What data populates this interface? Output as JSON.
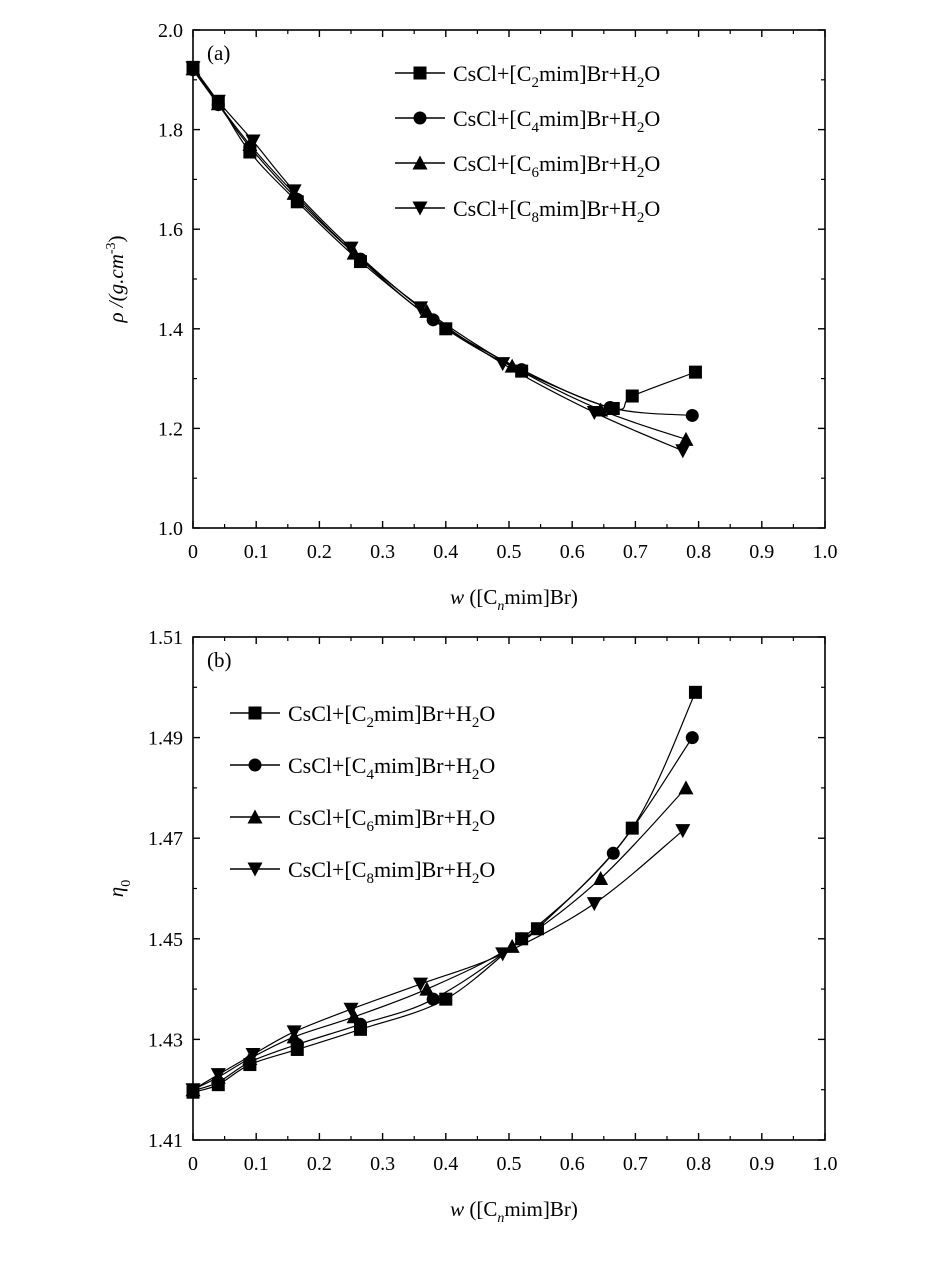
{
  "chart_data": [
    {
      "type": "line",
      "panel_label": "(a)",
      "xlabel_prefix": "w",
      "xlabel_text": "([C",
      "xlabel_sub": "n",
      "xlabel_suffix": "mim]Br)",
      "ylabel_text": "ρ /(g.cm",
      "ylabel_sup": "-3",
      "ylabel_close": ")",
      "xlim": [
        0,
        1.0
      ],
      "ylim": [
        1.0,
        2.0
      ],
      "xticks": [
        "0",
        "0.1",
        "0.2",
        "0.3",
        "0.4",
        "0.5",
        "0.6",
        "0.7",
        "0.8",
        "0.9",
        "1.0"
      ],
      "yticks": [
        "1.0",
        "1.2",
        "1.4",
        "1.6",
        "1.8",
        "2.0"
      ],
      "legend_position": "top-right",
      "series": [
        {
          "name": "CsCl+[C2mim]Br+H2O",
          "legend_parts": [
            "CsCl+[C",
            "2",
            "mim]Br+H",
            "2",
            "O"
          ],
          "marker": "square",
          "x": [
            0,
            0.04,
            0.09,
            0.165,
            0.265,
            0.4,
            0.52,
            0.665,
            0.695,
            0.795
          ],
          "y": [
            1.925,
            1.855,
            1.755,
            1.655,
            1.535,
            1.4,
            1.315,
            1.24,
            1.265,
            1.313
          ]
        },
        {
          "name": "CsCl+[C4mim]Br+H2O",
          "legend_parts": [
            "CsCl+[C",
            "4",
            "mim]Br+H",
            "2",
            "O"
          ],
          "marker": "circle",
          "x": [
            0,
            0.04,
            0.09,
            0.165,
            0.265,
            0.38,
            0.52,
            0.66,
            0.79
          ],
          "y": [
            1.92,
            1.85,
            1.765,
            1.66,
            1.54,
            1.418,
            1.318,
            1.242,
            1.226
          ]
        },
        {
          "name": "CsCl+[C6mim]Br+H2O",
          "legend_parts": [
            "CsCl+[C",
            "6",
            "mim]Br+H",
            "2",
            "O"
          ],
          "marker": "triangle-up",
          "x": [
            0,
            0.04,
            0.09,
            0.16,
            0.255,
            0.37,
            0.505,
            0.645,
            0.78
          ],
          "y": [
            1.922,
            1.852,
            1.77,
            1.672,
            1.552,
            1.435,
            1.325,
            1.237,
            1.178
          ]
        },
        {
          "name": "CsCl+[C8mim]Br+H2O",
          "legend_parts": [
            "CsCl+[C",
            "8",
            "mim]Br+H",
            "2",
            "O"
          ],
          "marker": "triangle-down",
          "x": [
            0,
            0.04,
            0.095,
            0.16,
            0.25,
            0.36,
            0.49,
            0.635,
            0.775
          ],
          "y": [
            1.924,
            1.857,
            1.777,
            1.677,
            1.562,
            1.442,
            1.33,
            1.232,
            1.155
          ]
        }
      ]
    },
    {
      "type": "line",
      "panel_label": "(b)",
      "xlabel_prefix": "w",
      "xlabel_text": "([C",
      "xlabel_sub": "n",
      "xlabel_suffix": "mim]Br)",
      "ylabel_text": "η",
      "ylabel_sub": "0",
      "xlim": [
        0,
        1.0
      ],
      "ylim": [
        1.41,
        1.51
      ],
      "xticks": [
        "0",
        "0.1",
        "0.2",
        "0.3",
        "0.4",
        "0.5",
        "0.6",
        "0.7",
        "0.8",
        "0.9",
        "1.0"
      ],
      "yticks": [
        "1.41",
        "1.43",
        "1.45",
        "1.47",
        "1.49",
        "1.51"
      ],
      "legend_position": "top-left",
      "series": [
        {
          "name": "CsCl+[C2mim]Br+H2O",
          "legend_parts": [
            "CsCl+[C",
            "2",
            "mim]Br+H",
            "2",
            "O"
          ],
          "marker": "square",
          "x": [
            0,
            0.04,
            0.09,
            0.165,
            0.265,
            0.4,
            0.52,
            0.545,
            0.695,
            0.795
          ],
          "y": [
            1.4195,
            1.421,
            1.425,
            1.428,
            1.432,
            1.438,
            1.45,
            1.452,
            1.472,
            1.499
          ]
        },
        {
          "name": "CsCl+[C4mim]Br+H2O",
          "legend_parts": [
            "CsCl+[C",
            "4",
            "mim]Br+H",
            "2",
            "O"
          ],
          "marker": "circle",
          "x": [
            0,
            0.04,
            0.09,
            0.165,
            0.265,
            0.38,
            0.52,
            0.665,
            0.79
          ],
          "y": [
            1.4198,
            1.4215,
            1.4255,
            1.429,
            1.433,
            1.438,
            1.45,
            1.467,
            1.49
          ]
        },
        {
          "name": "CsCl+[C6mim]Br+H2O",
          "legend_parts": [
            "CsCl+[C",
            "6",
            "mim]Br+H",
            "2",
            "O"
          ],
          "marker": "triangle-up",
          "x": [
            0,
            0.04,
            0.09,
            0.16,
            0.255,
            0.37,
            0.505,
            0.645,
            0.78
          ],
          "y": [
            1.42,
            1.4225,
            1.4262,
            1.4305,
            1.4345,
            1.44,
            1.4485,
            1.462,
            1.48
          ]
        },
        {
          "name": "CsCl+[C8mim]Br+H2O",
          "legend_parts": [
            "CsCl+[C",
            "8",
            "mim]Br+H",
            "2",
            "O"
          ],
          "marker": "triangle-down",
          "x": [
            0,
            0.04,
            0.095,
            0.16,
            0.25,
            0.36,
            0.49,
            0.635,
            0.775
          ],
          "y": [
            1.42,
            1.423,
            1.427,
            1.4315,
            1.436,
            1.441,
            1.447,
            1.457,
            1.4715
          ]
        }
      ]
    }
  ]
}
